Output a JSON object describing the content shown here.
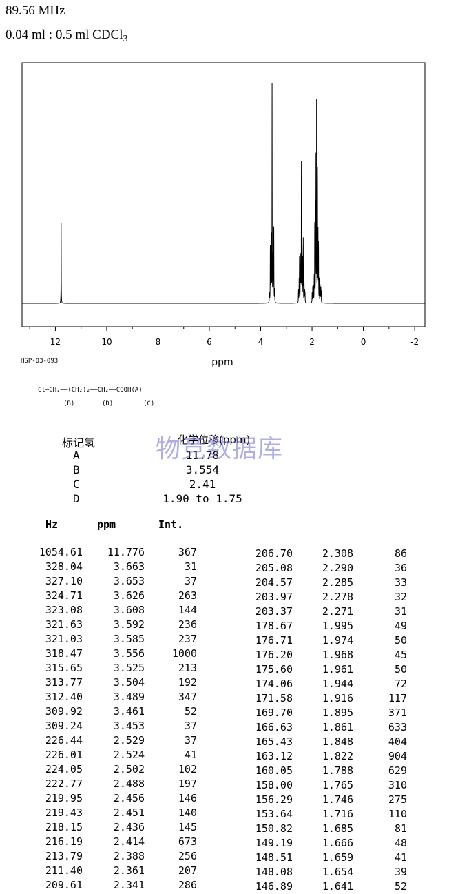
{
  "header": {
    "frequency": "89.56 MHz",
    "concentration": "0.04 ml : 0.5 ml CDCl",
    "concentration_sub": "3"
  },
  "chart_data": {
    "type": "line",
    "xlabel": "ppm",
    "xlim": [
      13.3,
      -2.4
    ],
    "x_reversed": true,
    "xticks": [
      12,
      10,
      8,
      6,
      4,
      2,
      0,
      -2
    ],
    "ylim": [
      0,
      1000
    ],
    "grid": false,
    "legend": "none",
    "peaks": [
      {
        "ppm": 11.776,
        "height": 367
      },
      {
        "ppm": 3.663,
        "height": 31
      },
      {
        "ppm": 3.653,
        "height": 37
      },
      {
        "ppm": 3.626,
        "height": 263
      },
      {
        "ppm": 3.608,
        "height": 144
      },
      {
        "ppm": 3.592,
        "height": 236
      },
      {
        "ppm": 3.585,
        "height": 237
      },
      {
        "ppm": 3.556,
        "height": 1000
      },
      {
        "ppm": 3.525,
        "height": 213
      },
      {
        "ppm": 3.504,
        "height": 192
      },
      {
        "ppm": 3.489,
        "height": 347
      },
      {
        "ppm": 3.461,
        "height": 52
      },
      {
        "ppm": 3.453,
        "height": 37
      },
      {
        "ppm": 2.529,
        "height": 37
      },
      {
        "ppm": 2.524,
        "height": 41
      },
      {
        "ppm": 2.502,
        "height": 102
      },
      {
        "ppm": 2.488,
        "height": 197
      },
      {
        "ppm": 2.456,
        "height": 146
      },
      {
        "ppm": 2.451,
        "height": 140
      },
      {
        "ppm": 2.436,
        "height": 145
      },
      {
        "ppm": 2.414,
        "height": 673
      },
      {
        "ppm": 2.388,
        "height": 256
      },
      {
        "ppm": 2.361,
        "height": 207
      },
      {
        "ppm": 2.341,
        "height": 286
      },
      {
        "ppm": 2.308,
        "height": 86
      },
      {
        "ppm": 2.29,
        "height": 36
      },
      {
        "ppm": 2.285,
        "height": 33
      },
      {
        "ppm": 2.278,
        "height": 32
      },
      {
        "ppm": 2.271,
        "height": 31
      },
      {
        "ppm": 1.995,
        "height": 49
      },
      {
        "ppm": 1.974,
        "height": 50
      },
      {
        "ppm": 1.968,
        "height": 45
      },
      {
        "ppm": 1.961,
        "height": 50
      },
      {
        "ppm": 1.944,
        "height": 72
      },
      {
        "ppm": 1.916,
        "height": 117
      },
      {
        "ppm": 1.895,
        "height": 371
      },
      {
        "ppm": 1.861,
        "height": 633
      },
      {
        "ppm": 1.848,
        "height": 404
      },
      {
        "ppm": 1.822,
        "height": 904
      },
      {
        "ppm": 1.788,
        "height": 629
      },
      {
        "ppm": 1.765,
        "height": 310
      },
      {
        "ppm": 1.746,
        "height": 275
      },
      {
        "ppm": 1.716,
        "height": 110
      },
      {
        "ppm": 1.685,
        "height": 81
      },
      {
        "ppm": 1.666,
        "height": 48
      },
      {
        "ppm": 1.659,
        "height": 41
      },
      {
        "ppm": 1.654,
        "height": 39
      },
      {
        "ppm": 1.641,
        "height": 52
      }
    ]
  },
  "sample_id": "HSP-03-093",
  "structure": {
    "line1": "Cl—CH₂——(CH₂)₂——CH₂——COOH(A)",
    "label_b": "(B)",
    "label_d": "(D)",
    "label_c": "(C)"
  },
  "assignments": {
    "header_label": "标记氢",
    "header_shift": "化学位移(ppm)",
    "rows": [
      {
        "label": "A",
        "shift": "11.78"
      },
      {
        "label": "B",
        "shift": "3.554"
      },
      {
        "label": "C",
        "shift": "2.41"
      },
      {
        "label": "D",
        "shift": "1.90 to 1.75"
      }
    ]
  },
  "watermark": "物竞数据库",
  "peak_table": {
    "headers": [
      "Hz",
      "ppm",
      "Int."
    ],
    "left": [
      [
        "1054.61",
        "11.776",
        "367"
      ],
      [
        "328.04",
        "3.663",
        "31"
      ],
      [
        "327.10",
        "3.653",
        "37"
      ],
      [
        "324.71",
        "3.626",
        "263"
      ],
      [
        "323.08",
        "3.608",
        "144"
      ],
      [
        "321.63",
        "3.592",
        "236"
      ],
      [
        "321.03",
        "3.585",
        "237"
      ],
      [
        "318.47",
        "3.556",
        "1000"
      ],
      [
        "315.65",
        "3.525",
        "213"
      ],
      [
        "313.77",
        "3.504",
        "192"
      ],
      [
        "312.40",
        "3.489",
        "347"
      ],
      [
        "309.92",
        "3.461",
        "52"
      ],
      [
        "309.24",
        "3.453",
        "37"
      ],
      [
        "226.44",
        "2.529",
        "37"
      ],
      [
        "226.01",
        "2.524",
        "41"
      ],
      [
        "224.05",
        "2.502",
        "102"
      ],
      [
        "222.77",
        "2.488",
        "197"
      ],
      [
        "219.95",
        "2.456",
        "146"
      ],
      [
        "219.43",
        "2.451",
        "140"
      ],
      [
        "218.15",
        "2.436",
        "145"
      ],
      [
        "216.19",
        "2.414",
        "673"
      ],
      [
        "213.79",
        "2.388",
        "256"
      ],
      [
        "211.40",
        "2.361",
        "207"
      ],
      [
        "209.61",
        "2.341",
        "286"
      ]
    ],
    "right": [
      [
        "206.70",
        "2.308",
        "86"
      ],
      [
        "205.08",
        "2.290",
        "36"
      ],
      [
        "204.57",
        "2.285",
        "33"
      ],
      [
        "203.97",
        "2.278",
        "32"
      ],
      [
        "203.37",
        "2.271",
        "31"
      ],
      [
        "178.67",
        "1.995",
        "49"
      ],
      [
        "176.71",
        "1.974",
        "50"
      ],
      [
        "176.20",
        "1.968",
        "45"
      ],
      [
        "175.60",
        "1.961",
        "50"
      ],
      [
        "174.06",
        "1.944",
        "72"
      ],
      [
        "171.58",
        "1.916",
        "117"
      ],
      [
        "169.70",
        "1.895",
        "371"
      ],
      [
        "166.63",
        "1.861",
        "633"
      ],
      [
        "165.43",
        "1.848",
        "404"
      ],
      [
        "163.12",
        "1.822",
        "904"
      ],
      [
        "160.05",
        "1.788",
        "629"
      ],
      [
        "158.00",
        "1.765",
        "310"
      ],
      [
        "156.29",
        "1.746",
        "275"
      ],
      [
        "153.64",
        "1.716",
        "110"
      ],
      [
        "150.82",
        "1.685",
        "81"
      ],
      [
        "149.19",
        "1.666",
        "48"
      ],
      [
        "148.51",
        "1.659",
        "41"
      ],
      [
        "148.08",
        "1.654",
        "39"
      ],
      [
        "146.89",
        "1.641",
        "52"
      ]
    ]
  }
}
